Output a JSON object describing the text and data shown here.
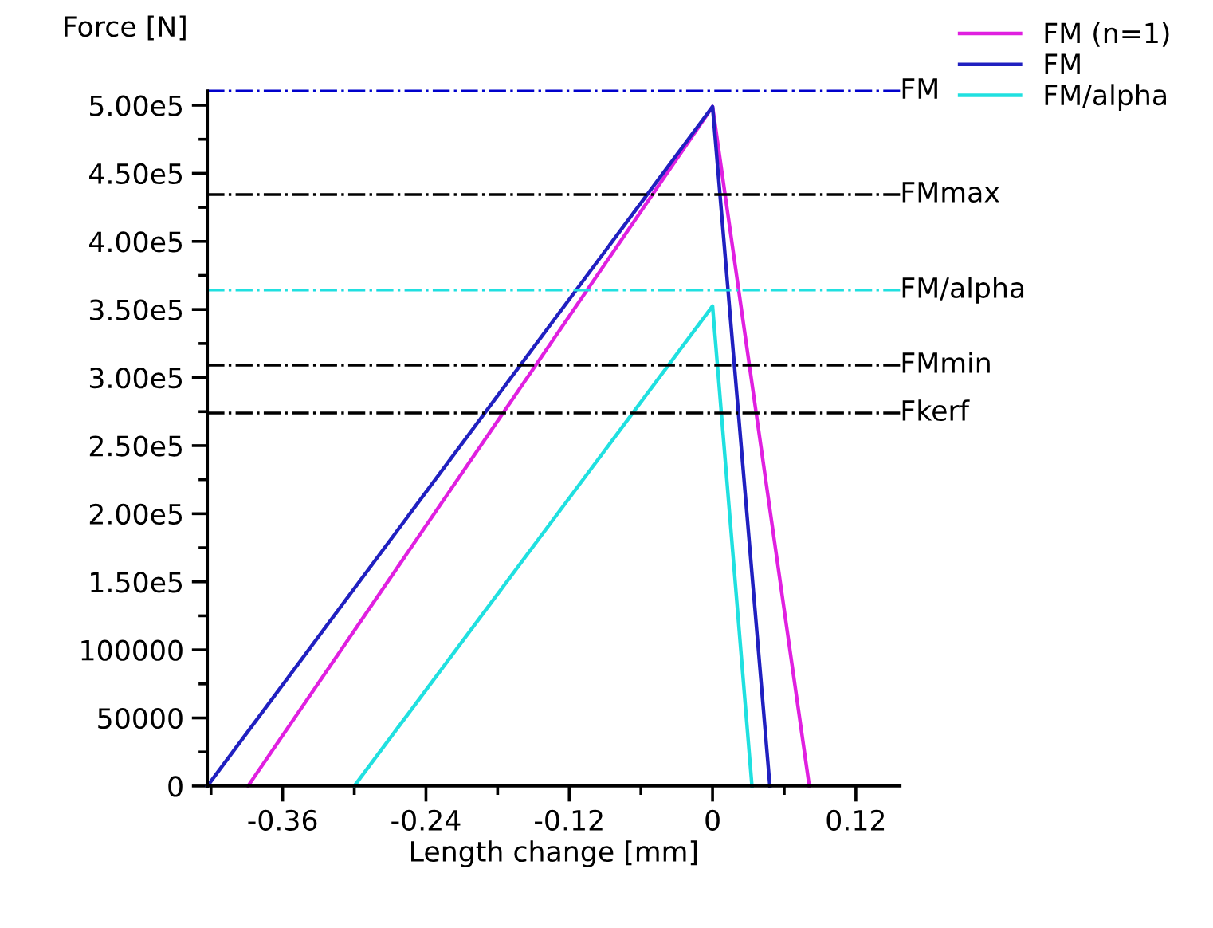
{
  "chart_data": {
    "type": "line",
    "xlabel": "Length change [mm]",
    "ylabel": "Force [N]",
    "xlim": [
      -0.423,
      0.157
    ],
    "ylim": [
      0,
      510500
    ],
    "xticks": [
      -0.36,
      -0.24,
      -0.12,
      0,
      0.12
    ],
    "yticks": [
      0,
      50000,
      100000,
      {
        "value": 150000,
        "label": "1.50e5"
      },
      {
        "value": 200000,
        "label": "2.00e5"
      },
      {
        "value": 250000,
        "label": "2.50e5"
      },
      {
        "value": 300000,
        "label": "3.00e5"
      },
      {
        "value": 350000,
        "label": "3.50e5"
      },
      {
        "value": 400000,
        "label": "4.00e5"
      },
      {
        "value": 450000,
        "label": "4.50e5"
      },
      {
        "value": 500000,
        "label": "5.00e5"
      }
    ],
    "grid": false,
    "legend": "top right",
    "marker": "none",
    "line_style": "solid",
    "series": [
      {
        "name": "FM (n=1)",
        "color": "#e020e0",
        "x": [
          -0.389,
          0,
          0.081
        ],
        "values": [
          0,
          499000,
          0
        ]
      },
      {
        "name": "FM",
        "color": "#2020c0",
        "x": [
          -0.423,
          0,
          0.048
        ],
        "values": [
          0,
          499000,
          0
        ]
      },
      {
        "name": "FM/alpha",
        "color": "#20e0e0",
        "x": [
          -0.3,
          0,
          0.033
        ],
        "values": [
          0,
          352500,
          0
        ]
      }
    ],
    "ref_lines": [
      {
        "axis": "y",
        "value": 510500,
        "label": "FM",
        "color": "#0000cc",
        "line_style": "dashdot"
      },
      {
        "axis": "y",
        "value": 434400,
        "label": "FMmax",
        "color": "#000000",
        "line_style": "dashdot"
      },
      {
        "axis": "y",
        "value": 364200,
        "label": "FM/alpha",
        "color": "#20e0e0",
        "line_style": "dashdot"
      },
      {
        "axis": "y",
        "value": 309100,
        "label": "FMmin",
        "color": "#000000",
        "line_style": "dashdot"
      },
      {
        "axis": "y",
        "value": 274000,
        "label": "Fkerf",
        "color": "#000000",
        "line_style": "dashdot"
      }
    ]
  }
}
